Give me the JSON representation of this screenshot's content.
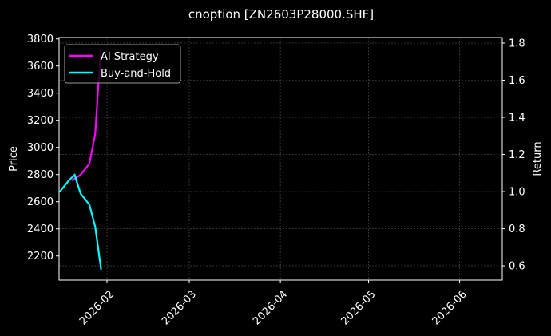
{
  "chart_data": {
    "type": "line",
    "title": "cnoption [ZN2603P28000.SHF]",
    "ylabel": "Price",
    "y2label": "Return",
    "xlim": [
      "2026-01-15.7",
      "2026-06-15"
    ],
    "ylim": [
      2022,
      3810
    ],
    "y2lim": [
      0.523,
      1.83
    ],
    "xticks": [
      "2026-02",
      "2026-03",
      "2026-04",
      "2026-05",
      "2026-06"
    ],
    "yticks": [
      2200,
      2400,
      2600,
      2800,
      3000,
      3200,
      3400,
      3600,
      3800
    ],
    "y2ticks": [
      0.6,
      0.8,
      1.0,
      1.2,
      1.4,
      1.6,
      1.8
    ],
    "grid": true,
    "legend_position": "top-left",
    "series": [
      {
        "name": "AI Strategy",
        "color": "#ff00ff",
        "axis": "right",
        "x": [
          "2026-01-20",
          "2026-01-23",
          "2026-01-26",
          "2026-01-28",
          "2026-01-29",
          "2026-01-30"
        ],
        "values": [
          1.06,
          1.09,
          1.15,
          1.31,
          1.56,
          1.77
        ]
      },
      {
        "name": "Buy-and-Hold",
        "color": "#00ffff",
        "axis": "right",
        "x": [
          "2026-01-16",
          "2026-01-19",
          "2026-01-21",
          "2026-01-23",
          "2026-01-26",
          "2026-01-28",
          "2026-01-30"
        ],
        "values": [
          1.0,
          1.06,
          1.09,
          0.99,
          0.93,
          0.81,
          0.58
        ]
      }
    ]
  }
}
